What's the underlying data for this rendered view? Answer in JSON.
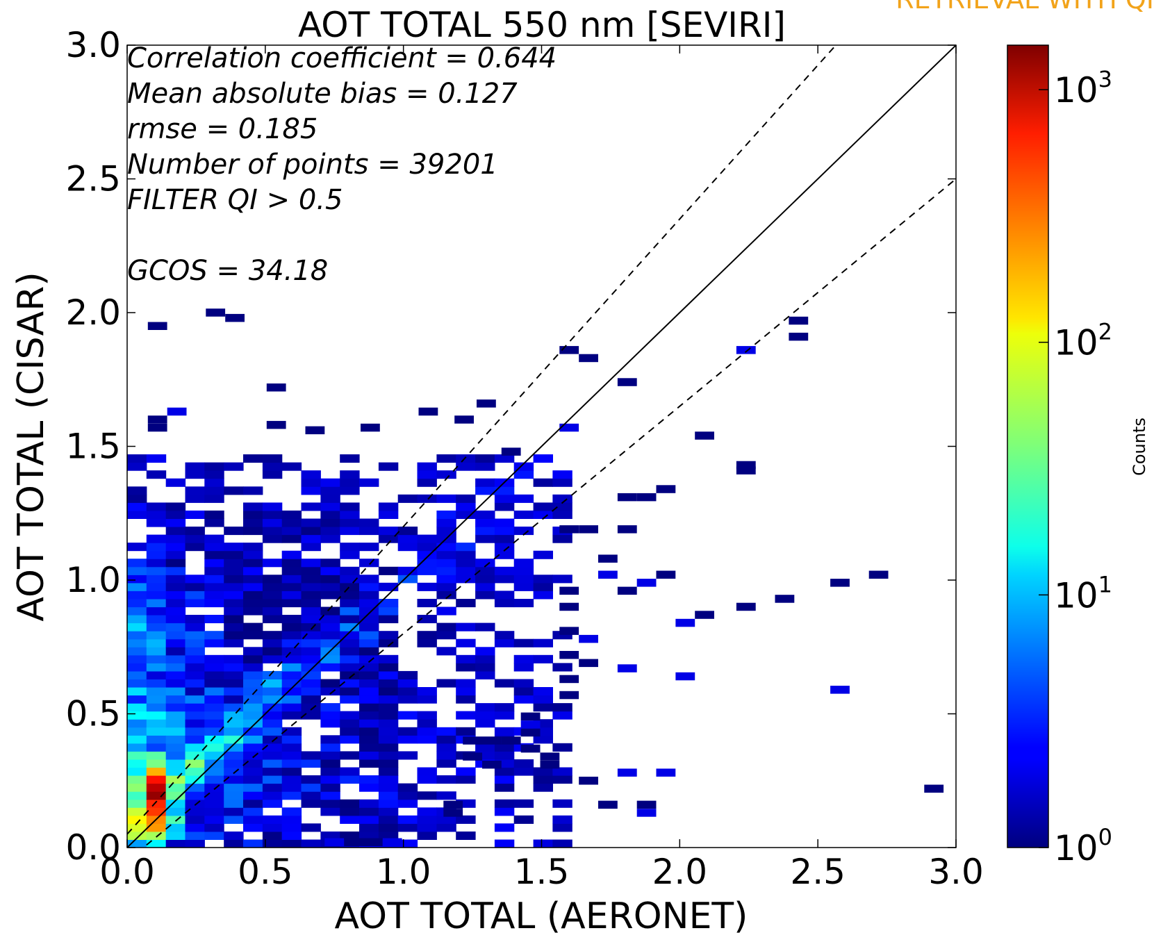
{
  "corner_banner": "RETRIEVAL WITH QI",
  "chart_data": {
    "type": "heatmap",
    "title": "AOT TOTAL 550 nm [SEVIRI]",
    "xlabel": "AOT TOTAL (AERONET)",
    "ylabel": "AOT TOTAL  (CISAR)",
    "xlim": [
      0,
      3
    ],
    "ylim": [
      0,
      3
    ],
    "xticks": [
      "0.0",
      "0.5",
      "1.0",
      "1.5",
      "2.0",
      "2.5",
      "3.0"
    ],
    "yticks": [
      "0.0",
      "0.5",
      "1.0",
      "1.5",
      "2.0",
      "2.5",
      "3.0"
    ],
    "bin_size": [
      0.07,
      0.03
    ],
    "annotations": [
      "Correlation coefficient = 0.644",
      "Mean absolute bias = 0.127",
      "rmse = 0.185",
      "Number of points = 39201",
      "FILTER QI > 0.5",
      "",
      "GCOS = 34.18"
    ],
    "reference_lines": [
      {
        "style": "solid",
        "slope": 1,
        "intercept": 0
      },
      {
        "style": "dashed",
        "slope": 1.15,
        "intercept": 0.05
      },
      {
        "style": "dashed",
        "slope": 0.85,
        "intercept": -0.05
      }
    ],
    "colorbar": {
      "label": "Counts",
      "scale": "log",
      "range": [
        1,
        1500
      ],
      "ticks": [
        {
          "base": "10",
          "exp": "0"
        },
        {
          "base": "10",
          "exp": "1"
        },
        {
          "base": "10",
          "exp": "2"
        },
        {
          "base": "10",
          "exp": "3"
        }
      ],
      "colormap": "jet"
    },
    "outliers": [
      [
        0.11,
        1.95
      ],
      [
        0.32,
        2.0
      ],
      [
        0.39,
        1.98
      ],
      [
        0.11,
        1.6
      ],
      [
        0.18,
        1.63
      ],
      [
        0.11,
        1.57
      ],
      [
        0.54,
        1.72
      ],
      [
        0.54,
        1.58
      ],
      [
        0.68,
        1.56
      ],
      [
        0.88,
        1.57
      ],
      [
        1.09,
        1.63
      ],
      [
        1.3,
        1.66
      ],
      [
        1.22,
        1.6
      ],
      [
        1.6,
        1.86
      ],
      [
        1.67,
        1.83
      ],
      [
        1.81,
        1.74
      ],
      [
        2.24,
        1.86
      ],
      [
        2.43,
        1.97
      ],
      [
        2.43,
        1.91
      ],
      [
        2.09,
        1.54
      ],
      [
        2.24,
        1.43
      ],
      [
        2.24,
        1.41
      ],
      [
        1.6,
        1.57
      ],
      [
        1.39,
        1.48
      ],
      [
        1.95,
        1.34
      ],
      [
        1.88,
        1.31
      ],
      [
        1.81,
        1.31
      ],
      [
        1.6,
        1.19
      ],
      [
        1.67,
        1.19
      ],
      [
        1.81,
        1.19
      ],
      [
        1.74,
        1.08
      ],
      [
        1.74,
        1.02
      ],
      [
        1.88,
        0.99
      ],
      [
        1.95,
        1.02
      ],
      [
        1.81,
        0.96
      ],
      [
        1.6,
        0.96
      ],
      [
        1.6,
        0.9
      ],
      [
        1.6,
        0.81
      ],
      [
        1.67,
        0.78
      ],
      [
        1.6,
        0.72
      ],
      [
        1.67,
        0.69
      ],
      [
        1.6,
        0.63
      ],
      [
        1.6,
        0.57
      ],
      [
        1.81,
        0.67
      ],
      [
        2.02,
        0.64
      ],
      [
        2.02,
        0.84
      ],
      [
        2.09,
        0.87
      ],
      [
        2.24,
        0.9
      ],
      [
        2.38,
        0.93
      ],
      [
        2.58,
        0.99
      ],
      [
        2.72,
        1.02
      ],
      [
        2.58,
        0.59
      ],
      [
        2.92,
        0.22
      ],
      [
        1.74,
        0.16
      ],
      [
        1.88,
        0.16
      ],
      [
        1.88,
        0.13
      ],
      [
        1.67,
        0.25
      ],
      [
        1.81,
        0.28
      ],
      [
        1.95,
        0.28
      ],
      [
        1.53,
        0.31
      ],
      [
        1.53,
        0.34
      ],
      [
        1.46,
        0.37
      ],
      [
        1.39,
        0.4
      ],
      [
        1.25,
        0.34
      ],
      [
        1.32,
        0.31
      ],
      [
        1.25,
        0.4
      ],
      [
        1.32,
        0.4
      ],
      [
        1.46,
        0.43
      ],
      [
        1.46,
        0.46
      ],
      [
        1.46,
        0.49
      ],
      [
        1.18,
        0.13
      ],
      [
        1.18,
        0.16
      ],
      [
        0.82,
        0.02
      ],
      [
        0.75,
        0.02
      ],
      [
        0.89,
        0.02
      ],
      [
        0.96,
        0.02
      ]
    ]
  }
}
